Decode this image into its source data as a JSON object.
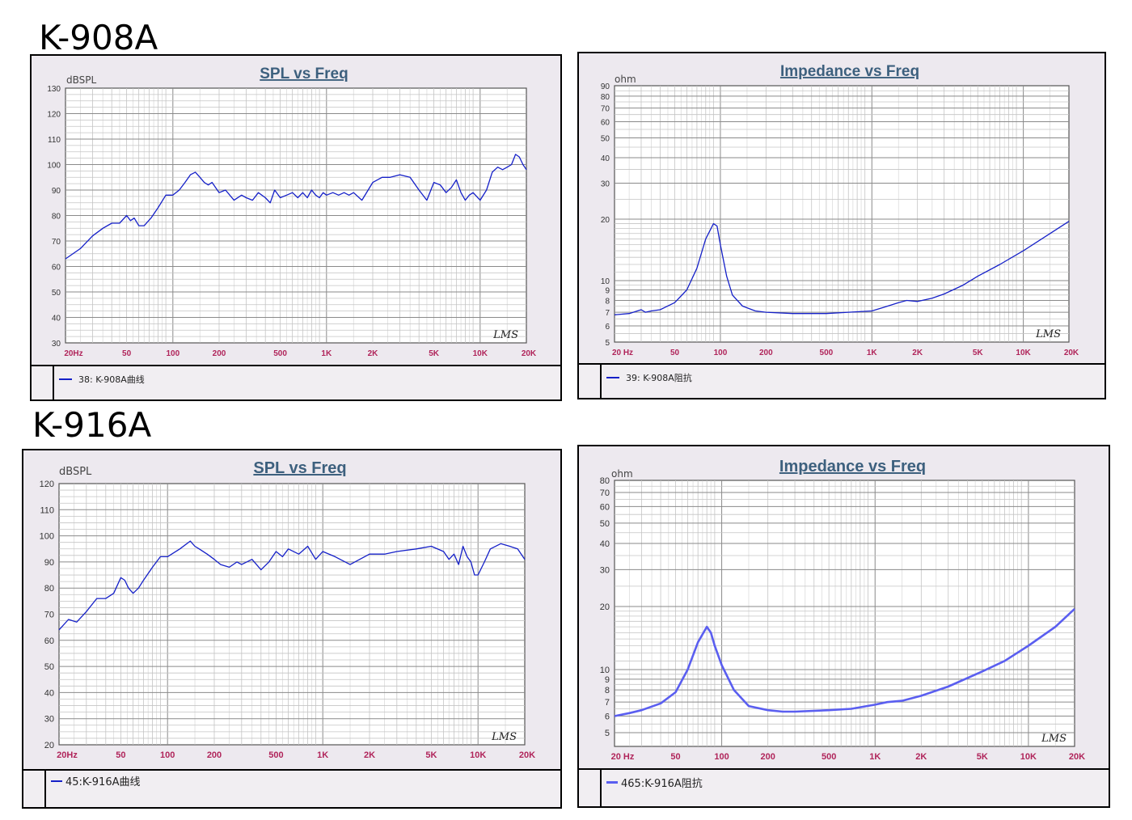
{
  "sections": [
    {
      "model": "K-908A"
    },
    {
      "model": "K-916A"
    }
  ],
  "colors": {
    "series_dark": "#1520c8",
    "series_light": "#5a5ef0",
    "tick_x": "#b0245a",
    "title": "#3d607e"
  },
  "chart_data": [
    {
      "type": "line",
      "title": "SPL vs Freq",
      "ylabel": "dBSPL",
      "xscale": "log",
      "xlim": [
        20,
        20000
      ],
      "ylim": [
        30,
        130
      ],
      "x_ticks": [
        20,
        50,
        100,
        200,
        500,
        1000,
        2000,
        5000,
        10000,
        20000
      ],
      "x_tick_labels": [
        "20Hz",
        "50",
        "100",
        "200",
        "500",
        "1K",
        "2K",
        "5K",
        "10K",
        "20K"
      ],
      "y_ticks": [
        30,
        40,
        50,
        60,
        70,
        80,
        90,
        100,
        110,
        120,
        130
      ],
      "y_tick_labels": [
        "30",
        "40",
        "50",
        "60",
        "70",
        "80",
        "90",
        "100",
        "110",
        "120",
        "130"
      ],
      "grid": true,
      "watermark": "LMS",
      "legend": "38: K-908A曲线",
      "series": [
        {
          "x": [
            20,
            25,
            30,
            35,
            40,
            45,
            50,
            53,
            56,
            60,
            65,
            72,
            80,
            90,
            100,
            110,
            120,
            130,
            140,
            150,
            160,
            170,
            180,
            200,
            220,
            250,
            280,
            300,
            330,
            360,
            400,
            430,
            460,
            500,
            550,
            600,
            650,
            700,
            750,
            800,
            850,
            900,
            950,
            1000,
            1100,
            1200,
            1300,
            1400,
            1500,
            1700,
            2000,
            2300,
            2600,
            3000,
            3500,
            4000,
            4500,
            5000,
            5500,
            6000,
            6500,
            7000,
            7500,
            8000,
            8500,
            9000,
            10000,
            11000,
            12000,
            13000,
            14000,
            15000,
            16000,
            17000,
            18000,
            19000,
            20000
          ],
          "y": [
            63,
            67,
            72,
            75,
            77,
            77,
            80,
            78,
            79,
            76,
            76,
            79,
            83,
            88,
            88,
            90,
            93,
            96,
            97,
            95,
            93,
            92,
            93,
            89,
            90,
            86,
            88,
            87,
            86,
            89,
            87,
            85,
            90,
            87,
            88,
            89,
            87,
            89,
            87,
            90,
            88,
            87,
            89,
            88,
            89,
            88,
            89,
            88,
            89,
            86,
            93,
            95,
            95,
            96,
            95,
            90,
            86,
            93,
            92,
            89,
            91,
            94,
            89,
            86,
            88,
            89,
            86,
            90,
            97,
            99,
            98,
            99,
            100,
            104,
            103,
            100,
            98
          ]
        }
      ]
    },
    {
      "type": "line",
      "title": "Impedance vs Freq",
      "ylabel": "ohm",
      "xscale": "log",
      "yscale": "log",
      "xlim": [
        20,
        20000
      ],
      "ylim": [
        5,
        90
      ],
      "x_ticks": [
        20,
        50,
        100,
        200,
        500,
        1000,
        2000,
        5000,
        10000,
        20000
      ],
      "x_tick_labels": [
        "20 Hz",
        "50",
        "100",
        "200",
        "500",
        "1K",
        "2K",
        "5K",
        "10K",
        "20K"
      ],
      "y_ticks": [
        5,
        6,
        7,
        8,
        9,
        10,
        20,
        30,
        40,
        50,
        60,
        70,
        80,
        90
      ],
      "y_tick_labels": [
        "5",
        "6",
        "7",
        "8",
        "9",
        "10",
        "20",
        "30",
        "40",
        "50",
        "60",
        "70",
        "80",
        "90"
      ],
      "grid": true,
      "watermark": "LMS",
      "legend": "39: K-908A阻抗",
      "series": [
        {
          "x": [
            20,
            25,
            30,
            32,
            35,
            40,
            50,
            60,
            70,
            80,
            90,
            95,
            100,
            110,
            120,
            140,
            170,
            200,
            300,
            500,
            700,
            1000,
            1200,
            1500,
            1700,
            2000,
            2500,
            3000,
            4000,
            5000,
            7000,
            10000,
            15000,
            20000
          ],
          "y": [
            6.8,
            6.9,
            7.2,
            7.0,
            7.1,
            7.2,
            7.8,
            9.0,
            11.5,
            16.0,
            19.0,
            18.5,
            15.0,
            10.5,
            8.5,
            7.5,
            7.1,
            7.0,
            6.9,
            6.9,
            7.0,
            7.1,
            7.4,
            7.8,
            8.0,
            7.9,
            8.2,
            8.6,
            9.5,
            10.5,
            12.0,
            14.0,
            17.0,
            19.5
          ]
        }
      ]
    },
    {
      "type": "line",
      "title": "SPL vs Freq",
      "ylabel": "dBSPL",
      "xscale": "log",
      "xlim": [
        20,
        20000
      ],
      "ylim": [
        20,
        120
      ],
      "x_ticks": [
        20,
        50,
        100,
        200,
        500,
        1000,
        2000,
        5000,
        10000,
        20000
      ],
      "x_tick_labels": [
        "20Hz",
        "50",
        "100",
        "200",
        "500",
        "1K",
        "2K",
        "5K",
        "10K",
        "20K"
      ],
      "y_ticks": [
        20,
        30,
        40,
        50,
        60,
        70,
        80,
        90,
        100,
        110,
        120
      ],
      "y_tick_labels": [
        "20",
        "30",
        "40",
        "50",
        "60",
        "70",
        "80",
        "90",
        "100",
        "110",
        "120"
      ],
      "grid": true,
      "watermark": "LMS",
      "legend": "45:K-916A曲线",
      "series": [
        {
          "x": [
            20,
            23,
            26,
            30,
            35,
            40,
            45,
            50,
            53,
            56,
            60,
            65,
            70,
            80,
            90,
            100,
            120,
            140,
            150,
            160,
            180,
            200,
            220,
            250,
            280,
            300,
            350,
            400,
            450,
            500,
            550,
            600,
            700,
            800,
            900,
            1000,
            1200,
            1500,
            2000,
            2500,
            3000,
            4000,
            5000,
            6000,
            6500,
            7000,
            7500,
            8000,
            8500,
            9000,
            9500,
            10000,
            11000,
            12000,
            14000,
            16000,
            18000,
            20000
          ],
          "y": [
            64,
            68,
            67,
            71,
            76,
            76,
            78,
            84,
            83,
            80,
            78,
            80,
            83,
            88,
            92,
            92,
            95,
            98,
            96,
            95,
            93,
            91,
            89,
            88,
            90,
            89,
            91,
            87,
            90,
            94,
            92,
            95,
            93,
            96,
            91,
            94,
            92,
            89,
            93,
            93,
            94,
            95,
            96,
            94,
            91,
            93,
            89,
            96,
            92,
            90,
            85,
            85,
            90,
            95,
            97,
            96,
            95,
            91
          ]
        }
      ]
    },
    {
      "type": "line",
      "title": "Impedance vs Freq",
      "ylabel": "ohm",
      "xscale": "log",
      "yscale": "log",
      "xlim": [
        20,
        20000
      ],
      "ylim": [
        4.3,
        80
      ],
      "x_ticks": [
        20,
        50,
        100,
        200,
        500,
        1000,
        2000,
        5000,
        10000,
        20000
      ],
      "x_tick_labels": [
        "20 Hz",
        "50",
        "100",
        "200",
        "500",
        "1K",
        "2K",
        "5K",
        "10K",
        "20K"
      ],
      "y_ticks": [
        5,
        6,
        7,
        8,
        9,
        10,
        20,
        30,
        40,
        50,
        60,
        70,
        80
      ],
      "y_tick_labels": [
        "5",
        "6",
        "7",
        "8",
        "9",
        "10",
        "20",
        "30",
        "40",
        "50",
        "60",
        "70",
        "80"
      ],
      "grid": true,
      "watermark": "LMS",
      "legend": "465:K-916A阻抗",
      "series": [
        {
          "x": [
            20,
            25,
            30,
            40,
            50,
            60,
            70,
            80,
            85,
            90,
            100,
            120,
            150,
            200,
            250,
            300,
            500,
            700,
            1000,
            1200,
            1500,
            2000,
            3000,
            5000,
            7000,
            10000,
            15000,
            20000
          ],
          "y": [
            6.0,
            6.2,
            6.4,
            6.9,
            7.8,
            10.0,
            13.5,
            16.0,
            15.0,
            13.0,
            10.5,
            8.0,
            6.7,
            6.4,
            6.3,
            6.3,
            6.4,
            6.5,
            6.8,
            7.0,
            7.1,
            7.5,
            8.3,
            9.8,
            11.0,
            13.0,
            16.0,
            19.5
          ]
        }
      ]
    }
  ]
}
